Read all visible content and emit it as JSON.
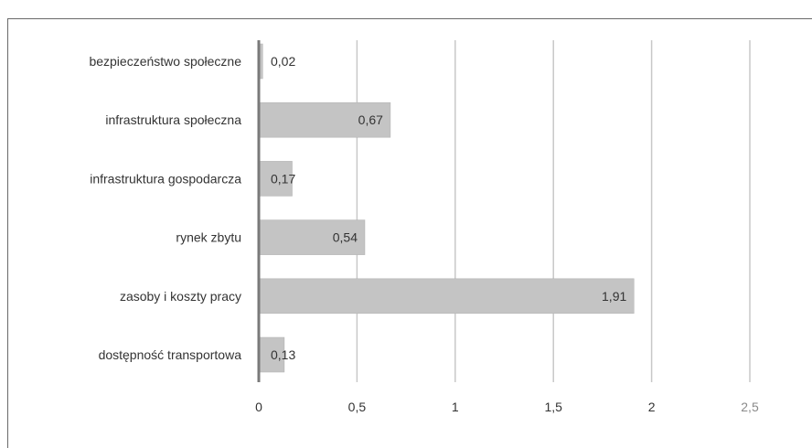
{
  "chart_data": {
    "type": "bar",
    "orientation": "horizontal",
    "categories": [
      "bezpieczeństwo społeczne",
      "infrastruktura społeczna",
      "infrastruktura gospodarcza",
      "rynek zbytu",
      "zasoby i koszty pracy",
      "dostępność transportowa"
    ],
    "values": [
      0.02,
      0.67,
      0.17,
      0.54,
      1.91,
      0.13
    ],
    "value_labels": [
      "0,02",
      "0,67",
      "0,17",
      "0,54",
      "1,91",
      "0,13"
    ],
    "xlim": [
      0,
      2.5
    ],
    "x_ticks": [
      0,
      0.5,
      1,
      1.5,
      2,
      2.5
    ],
    "x_tick_labels": [
      "0",
      "0,5",
      "1",
      "1,5",
      "2",
      "2,5"
    ],
    "grid": true,
    "colors": {
      "bar": "#c4c4c4",
      "bar_edge": "#b0b0b0",
      "grid": "#c8c8c8",
      "axis": "#7a7a7a"
    }
  }
}
